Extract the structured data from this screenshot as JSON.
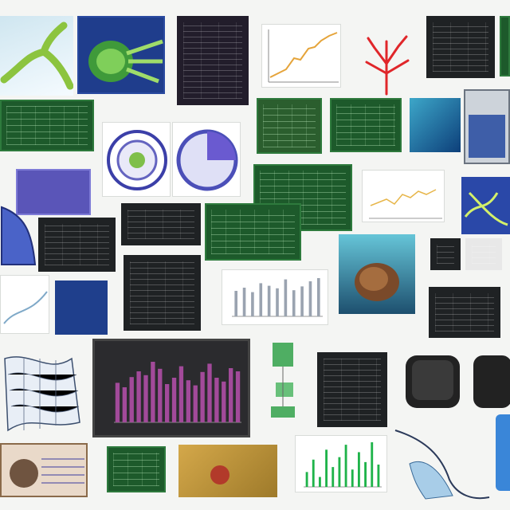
{
  "image": {
    "description_free": true,
    "background_color": "#f4f5f3"
  },
  "colors": {
    "dark_panel": "#1f2224",
    "green_panel": "#1d5a2b",
    "blue_panel": "#3b55a8",
    "bar_purple": "#a24a9a",
    "bar_green": "#1fb34a",
    "accent_red": "#e0262a"
  },
  "bar_chart_center": {
    "values": [
      62,
      55,
      71,
      80,
      74,
      95,
      84,
      60,
      70,
      88,
      66,
      58,
      79,
      92,
      70,
      64,
      85,
      80
    ]
  },
  "bar_chart_green": {
    "values": [
      30,
      55,
      20,
      75,
      40,
      60,
      85,
      35,
      70,
      50,
      90,
      45
    ]
  },
  "bar_chart_light": {
    "values": [
      40,
      45,
      38,
      52,
      48,
      44,
      58,
      41,
      47,
      55,
      60
    ]
  }
}
